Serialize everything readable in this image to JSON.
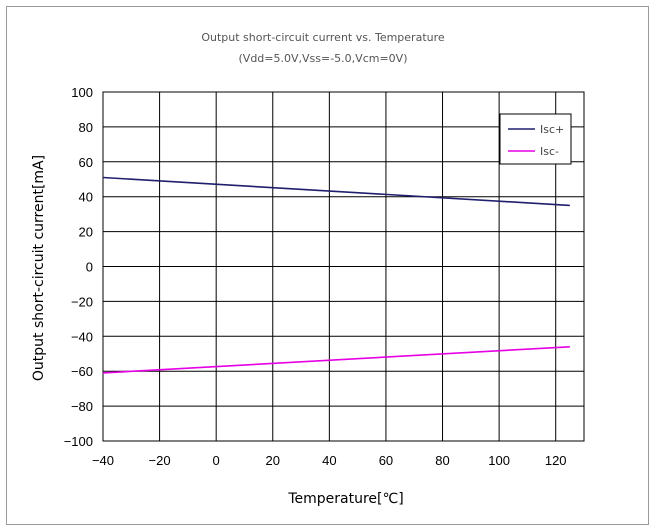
{
  "chart_data": {
    "type": "line",
    "title": "Output short-circuit current vs. Temperature",
    "subtitle": "(Vdd=5.0V,Vss=-5.0,Vcm=0V)",
    "xlabel": "Temperature[℃]",
    "ylabel": "Output short-circuit current[mA]",
    "xlim": [
      -40,
      125
    ],
    "ylim": [
      -100,
      100
    ],
    "xticks": [
      -40,
      -20,
      0,
      20,
      40,
      60,
      80,
      100,
      120
    ],
    "yticks": [
      100,
      80,
      60,
      40,
      20,
      0,
      -20,
      -40,
      -60,
      -80,
      -100
    ],
    "grid": true,
    "legend_position": "top-right",
    "series": [
      {
        "name": "Isc+",
        "color": "#1f1f6e",
        "x": [
          -40,
          125
        ],
        "y": [
          51,
          35
        ]
      },
      {
        "name": "Isc-",
        "color": "#e600e6",
        "x": [
          -40,
          125
        ],
        "y": [
          -61,
          -46
        ]
      }
    ]
  }
}
